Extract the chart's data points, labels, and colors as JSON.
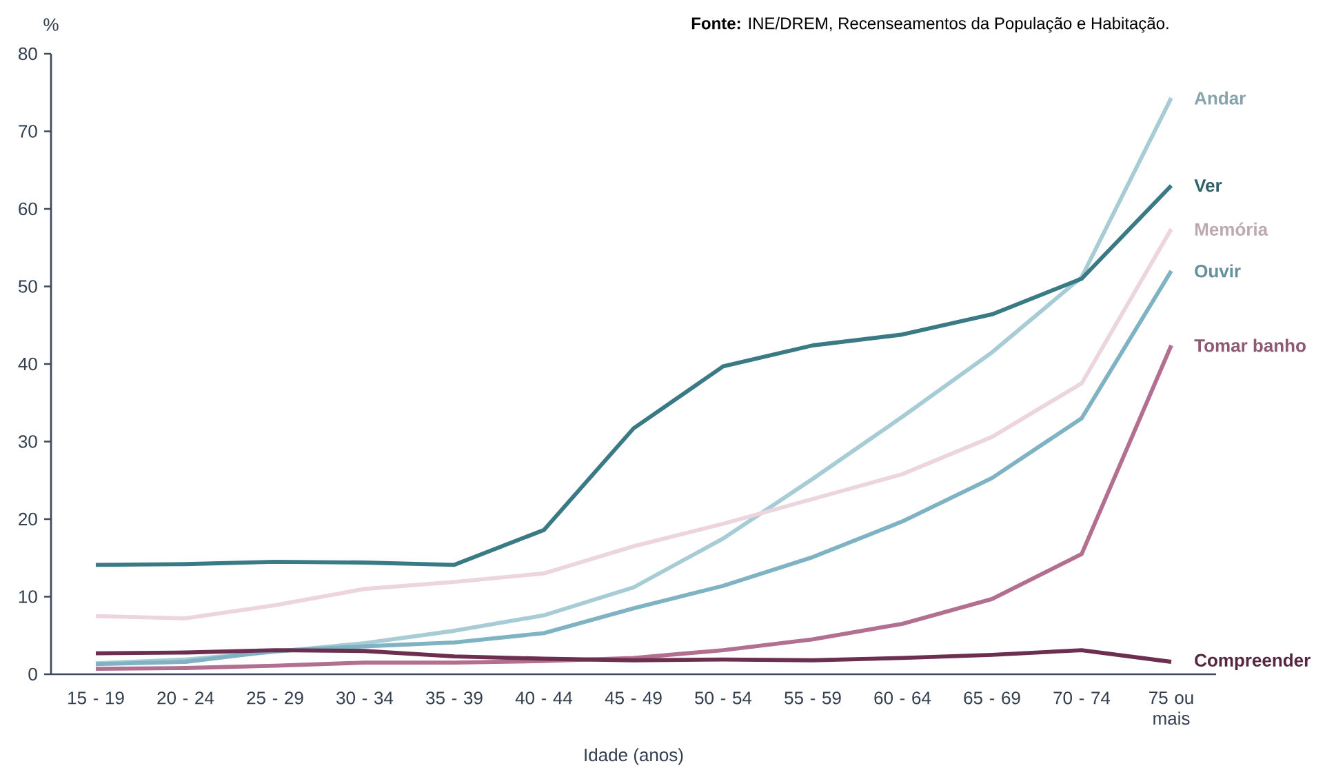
{
  "chart_data": {
    "type": "line",
    "xlabel": "Idade (anos)",
    "ylabel": "%",
    "annotations": [
      "**Fonte:** INE/DREM, Recenseamentos da População e Habitação."
    ],
    "categories": [
      "15 - 19",
      "20 - 24",
      "25 - 29",
      "30 - 34",
      "35 - 39",
      "40 - 44",
      "45 - 49",
      "50 - 54",
      "55 - 59",
      "60 - 64",
      "65 - 69",
      "70 - 74",
      "75 ou mais"
    ],
    "ylim": [
      0,
      80
    ],
    "yticks": [
      0,
      10,
      20,
      30,
      40,
      50,
      60,
      70,
      80
    ],
    "grid": false,
    "legend": false,
    "marker": "none",
    "line_style": "solid",
    "series": [
      {
        "name": "Andar",
        "color": "#a8ccd6",
        "values": [
          1.4,
          1.9,
          2.9,
          4.0,
          5.6,
          7.6,
          11.2,
          17.5,
          25.2,
          33.2,
          41.5,
          51.2,
          74.3
        ]
      },
      {
        "name": "Ver",
        "color": "#3a7a84",
        "values": [
          14.1,
          14.2,
          14.5,
          14.4,
          14.1,
          18.6,
          31.7,
          39.7,
          42.4,
          43.8,
          46.4,
          51.0,
          63.0
        ]
      },
      {
        "name": "Memória",
        "color": "#ecd5de",
        "values": [
          7.5,
          7.2,
          8.9,
          11.0,
          11.9,
          13.0,
          16.5,
          19.4,
          22.6,
          25.8,
          30.6,
          37.5,
          57.4
        ]
      },
      {
        "name": "Ouvir",
        "color": "#7fb3c4",
        "values": [
          1.3,
          1.6,
          3.0,
          3.6,
          4.1,
          5.3,
          8.5,
          11.4,
          15.1,
          19.7,
          25.3,
          33.0,
          52.0
        ]
      },
      {
        "name": "Tomar banho",
        "color": "#b26f8f",
        "values": [
          0.7,
          0.8,
          1.1,
          1.5,
          1.5,
          1.7,
          2.1,
          3.1,
          4.5,
          6.5,
          9.7,
          15.5,
          42.4
        ]
      },
      {
        "name": "Compreender",
        "color": "#6c2f4f",
        "values": [
          2.7,
          2.8,
          3.1,
          3.0,
          2.3,
          2.0,
          1.8,
          1.9,
          1.8,
          2.1,
          2.5,
          3.1,
          1.6
        ]
      }
    ]
  }
}
